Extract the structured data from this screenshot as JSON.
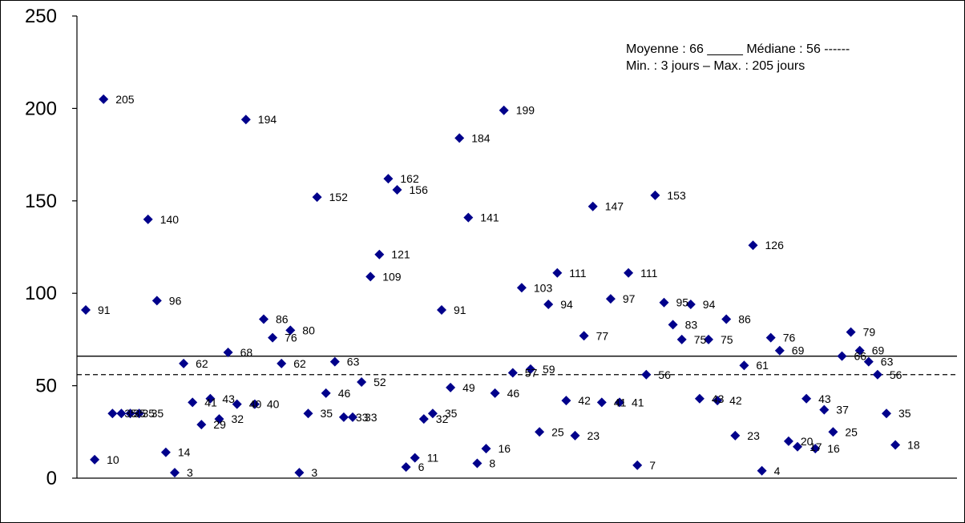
{
  "chart_data": {
    "type": "scatter",
    "marker": "diamond",
    "marker_color": "#00008B",
    "ylim": [
      0,
      250
    ],
    "yticks": [
      0,
      50,
      100,
      150,
      200,
      250
    ],
    "grid": false,
    "legend_placement": "top-right",
    "legend_lines": [
      "Moyenne :  66 _____ Médiane : 56 ------",
      "Min. : 3 jours – Max. : 205 jours"
    ],
    "reference_lines": [
      {
        "value": 66,
        "style": "solid"
      },
      {
        "value": 56,
        "style": "dashed"
      }
    ],
    "values": [
      91,
      10,
      205,
      35,
      35,
      35,
      35,
      140,
      96,
      14,
      3,
      62,
      41,
      29,
      43,
      32,
      68,
      40,
      194,
      40,
      86,
      76,
      62,
      80,
      3,
      35,
      152,
      46,
      63,
      33,
      33,
      52,
      109,
      121,
      162,
      156,
      6,
      11,
      32,
      35,
      91,
      49,
      184,
      141,
      8,
      16,
      46,
      199,
      57,
      103,
      59,
      25,
      94,
      111,
      42,
      23,
      77,
      147,
      41,
      97,
      41,
      111,
      7,
      56,
      153,
      95,
      83,
      75,
      94,
      43,
      75,
      42,
      86,
      23,
      61,
      126,
      4,
      76,
      69,
      20,
      17,
      43,
      16,
      37,
      25,
      66,
      79,
      69,
      63,
      56,
      35,
      18
    ],
    "labels": [
      "91",
      "10",
      "205",
      "35",
      "35",
      "35",
      "35",
      "140",
      "96",
      "14",
      "3",
      "62",
      "41",
      "29",
      "43",
      "32",
      "68",
      "40",
      "194",
      "40",
      "86",
      "76",
      "62",
      "80",
      "3",
      "35",
      "152",
      "46",
      "63",
      "33",
      "33",
      "52",
      "109",
      "121",
      "162",
      "156",
      "6",
      "11",
      "32",
      "35",
      "91",
      "49",
      "184",
      "141",
      "8",
      "16",
      "46",
      "199",
      "57",
      "103",
      "59",
      "25",
      "94",
      "111",
      "42",
      "23",
      "77",
      "147",
      "41",
      "97",
      "41",
      "111",
      "7",
      "56",
      "153",
      "95",
      "83",
      "75",
      "94",
      "43",
      "75",
      "42",
      "86",
      "23",
      "61",
      "126",
      "4",
      "76",
      "69",
      "20",
      "17",
      "43",
      "16",
      "37",
      "25",
      "66",
      "79",
      "69",
      "63",
      "56",
      "35",
      "18"
    ]
  }
}
